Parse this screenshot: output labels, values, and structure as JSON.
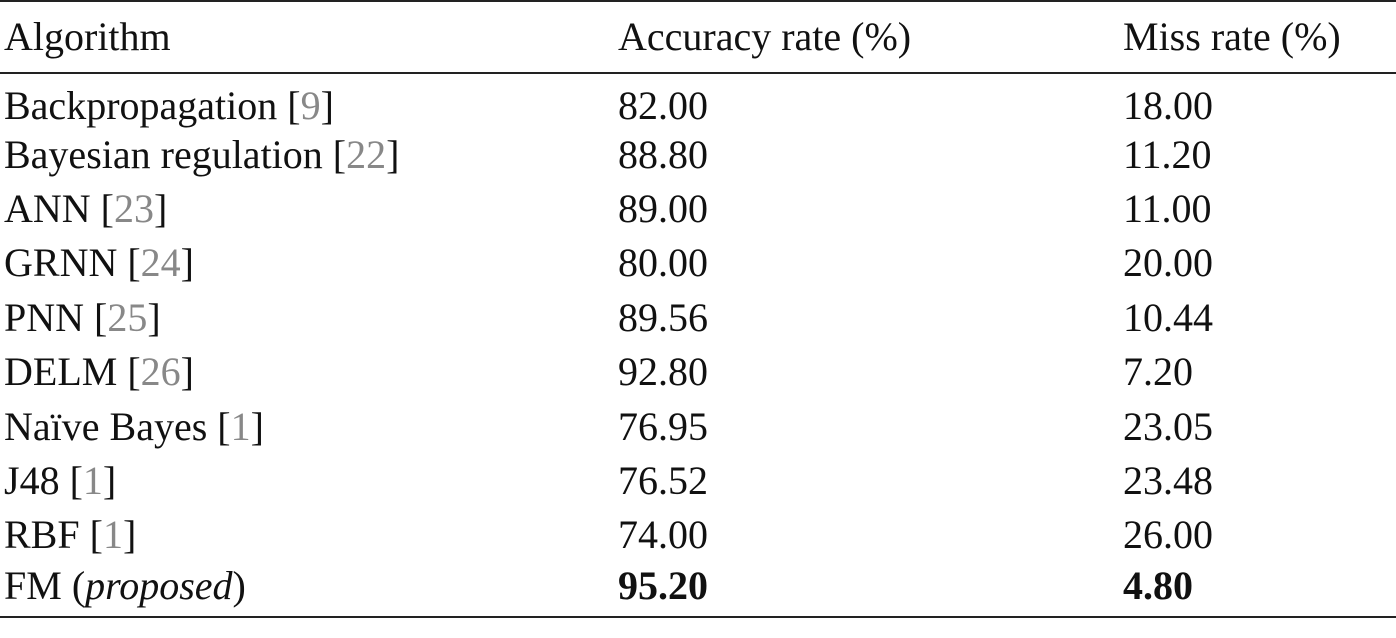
{
  "table": {
    "header": [
      "Algorithm",
      "Accuracy rate (%)",
      "Miss rate (%)"
    ],
    "rows": [
      [
        {
          "name": "Backpropagation",
          "open": "[",
          "ref": "9",
          "close": "]"
        },
        "82.00",
        "18.00"
      ],
      [
        {
          "name": "Bayesian regulation",
          "open": "[",
          "ref": "22",
          "close": "]"
        },
        "88.80",
        "11.20"
      ],
      [
        {
          "name": "ANN",
          "open": "[",
          "ref": "23",
          "close": "]"
        },
        "89.00",
        "11.00"
      ],
      [
        {
          "name": "GRNN",
          "open": "[",
          "ref": "24",
          "close": "]"
        },
        "80.00",
        "20.00"
      ],
      [
        {
          "name": "PNN",
          "open": "[",
          "ref": "25",
          "close": "]"
        },
        "89.56",
        "10.44"
      ],
      [
        {
          "name": "DELM",
          "open": "[",
          "ref": "26",
          "close": "]"
        },
        "92.80",
        "7.20"
      ],
      [
        {
          "name": "Naïve Bayes",
          "open": "[",
          "ref": "1",
          "close": "]"
        },
        "76.95",
        "23.05"
      ],
      [
        {
          "name": "J48",
          "open": "[",
          "ref": "1",
          "close": "]"
        },
        "76.52",
        "23.48"
      ],
      [
        {
          "name": "RBF",
          "open": "[",
          "ref": "1",
          "close": "]"
        },
        "74.00",
        "26.00"
      ],
      [
        {
          "name": "FM",
          "open": "(",
          "note": "proposed",
          "close": ")"
        },
        "95.20",
        "4.80"
      ]
    ]
  }
}
